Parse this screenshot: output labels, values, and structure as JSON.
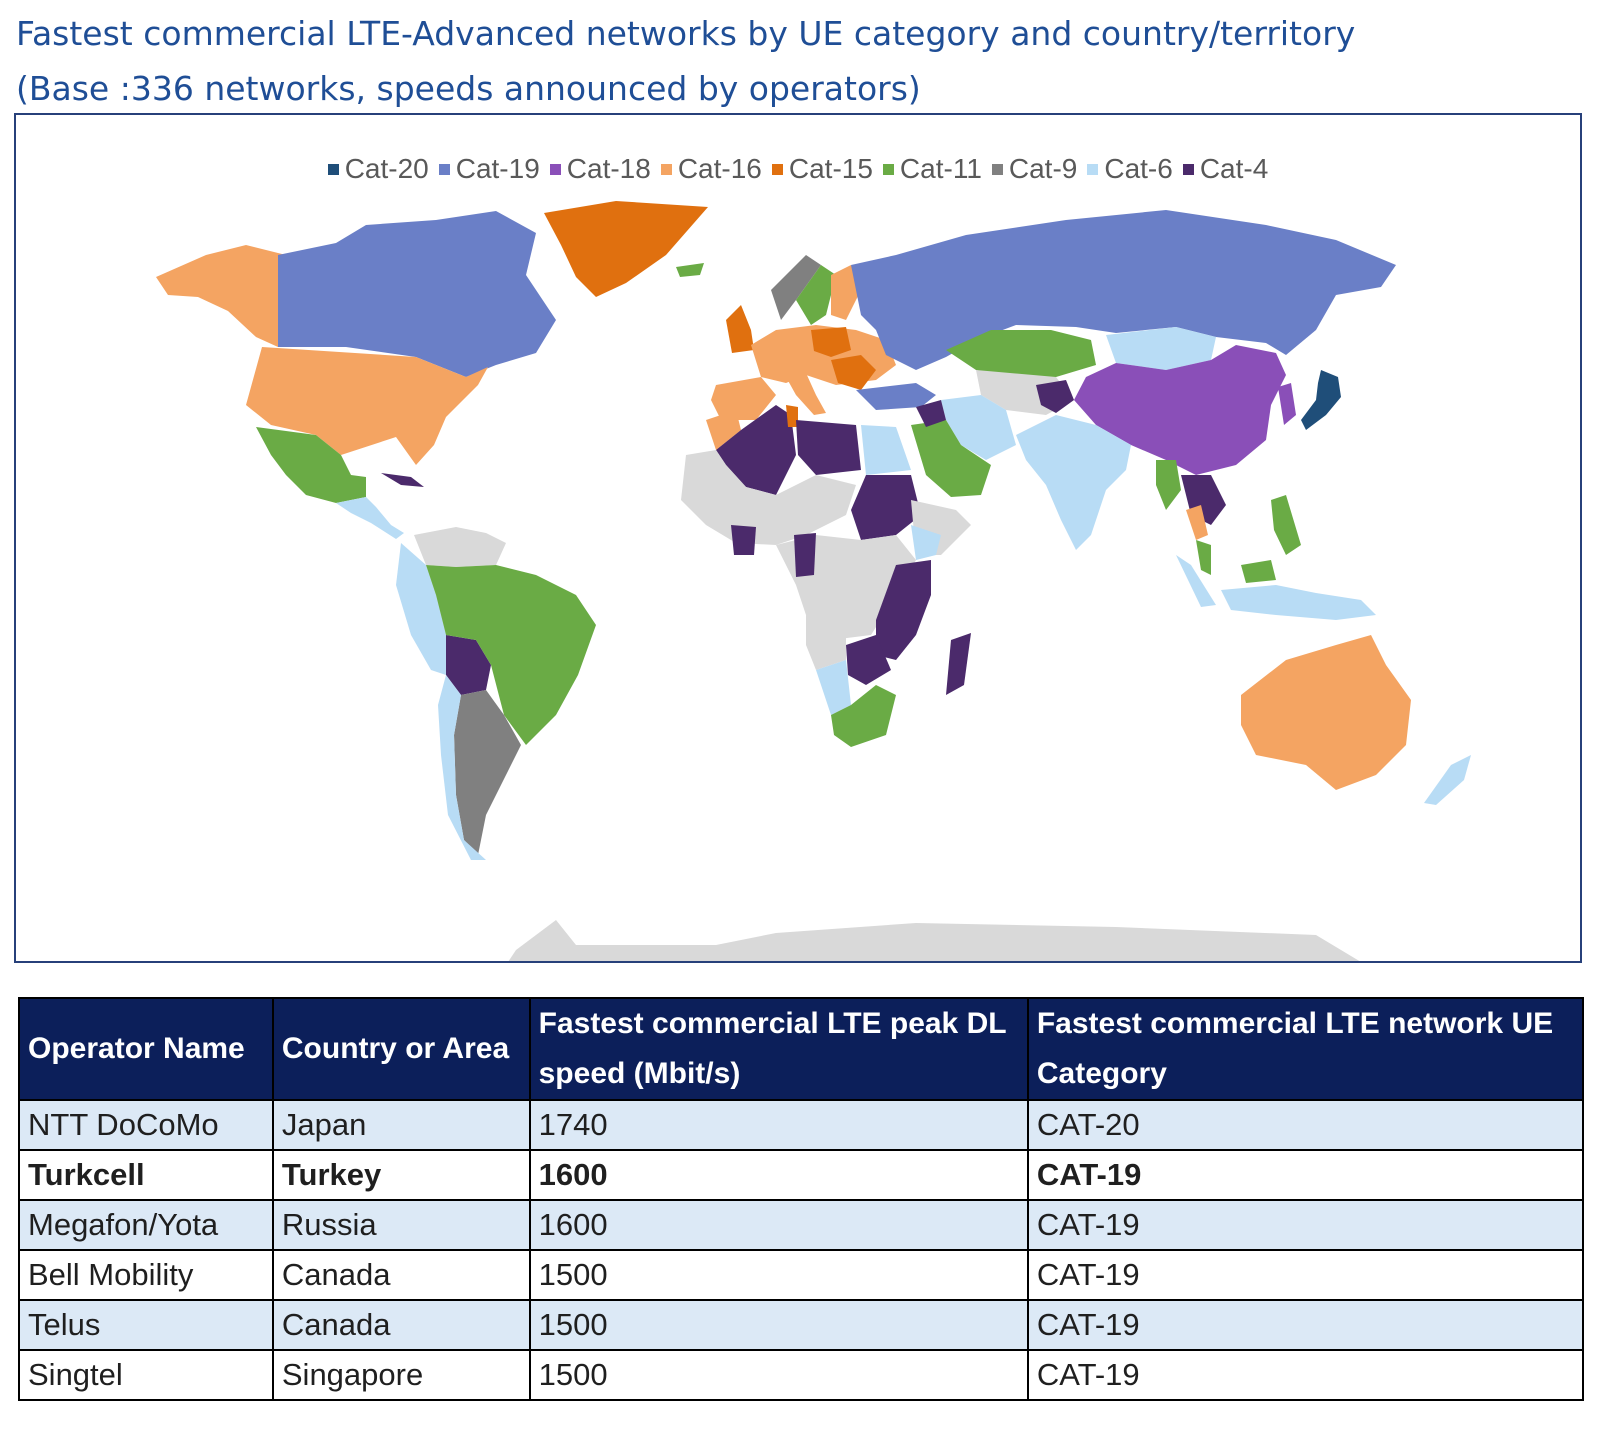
{
  "title_line1": "Fastest commercial LTE-Advanced networks by UE category and country/territory",
  "title_line2": "(Base :336 networks, speeds announced by operators)",
  "legend": [
    {
      "label": "Cat-20",
      "color": "#1f4e79"
    },
    {
      "label": "Cat-19",
      "color": "#6a7fc7"
    },
    {
      "label": "Cat-18",
      "color": "#8a4fb8"
    },
    {
      "label": "Cat-16",
      "color": "#f4a462"
    },
    {
      "label": "Cat-15",
      "color": "#e0700f"
    },
    {
      "label": "Cat-11",
      "color": "#6aab45"
    },
    {
      "label": "Cat-9",
      "color": "#808080"
    },
    {
      "label": "Cat-6",
      "color": "#b8dcf5"
    },
    {
      "label": "Cat-4",
      "color": "#4b2a6b"
    }
  ],
  "no_data_color": "#d9d9d9",
  "table": {
    "headers": [
      "Operator Name",
      "Country or Area",
      "Fastest commercial LTE peak DL speed (Mbit/s)",
      "Fastest commercial LTE network UE Category"
    ],
    "rows": [
      {
        "operator": "NTT DoCoMo",
        "country": "Japan",
        "speed": "1740",
        "category": "CAT-20"
      },
      {
        "operator": "Turkcell",
        "country": "Turkey",
        "speed": "1600",
        "category": "CAT-19"
      },
      {
        "operator": "Megafon/Yota",
        "country": "Russia",
        "speed": "1600",
        "category": "CAT-19"
      },
      {
        "operator": "Bell Mobility",
        "country": "Canada",
        "speed": "1500",
        "category": "CAT-19"
      },
      {
        "operator": "Telus",
        "country": "Canada",
        "speed": "1500",
        "category": "CAT-19"
      },
      {
        "operator": "Singtel",
        "country": "Singapore",
        "speed": "1500",
        "category": "CAT-19"
      }
    ]
  }
}
